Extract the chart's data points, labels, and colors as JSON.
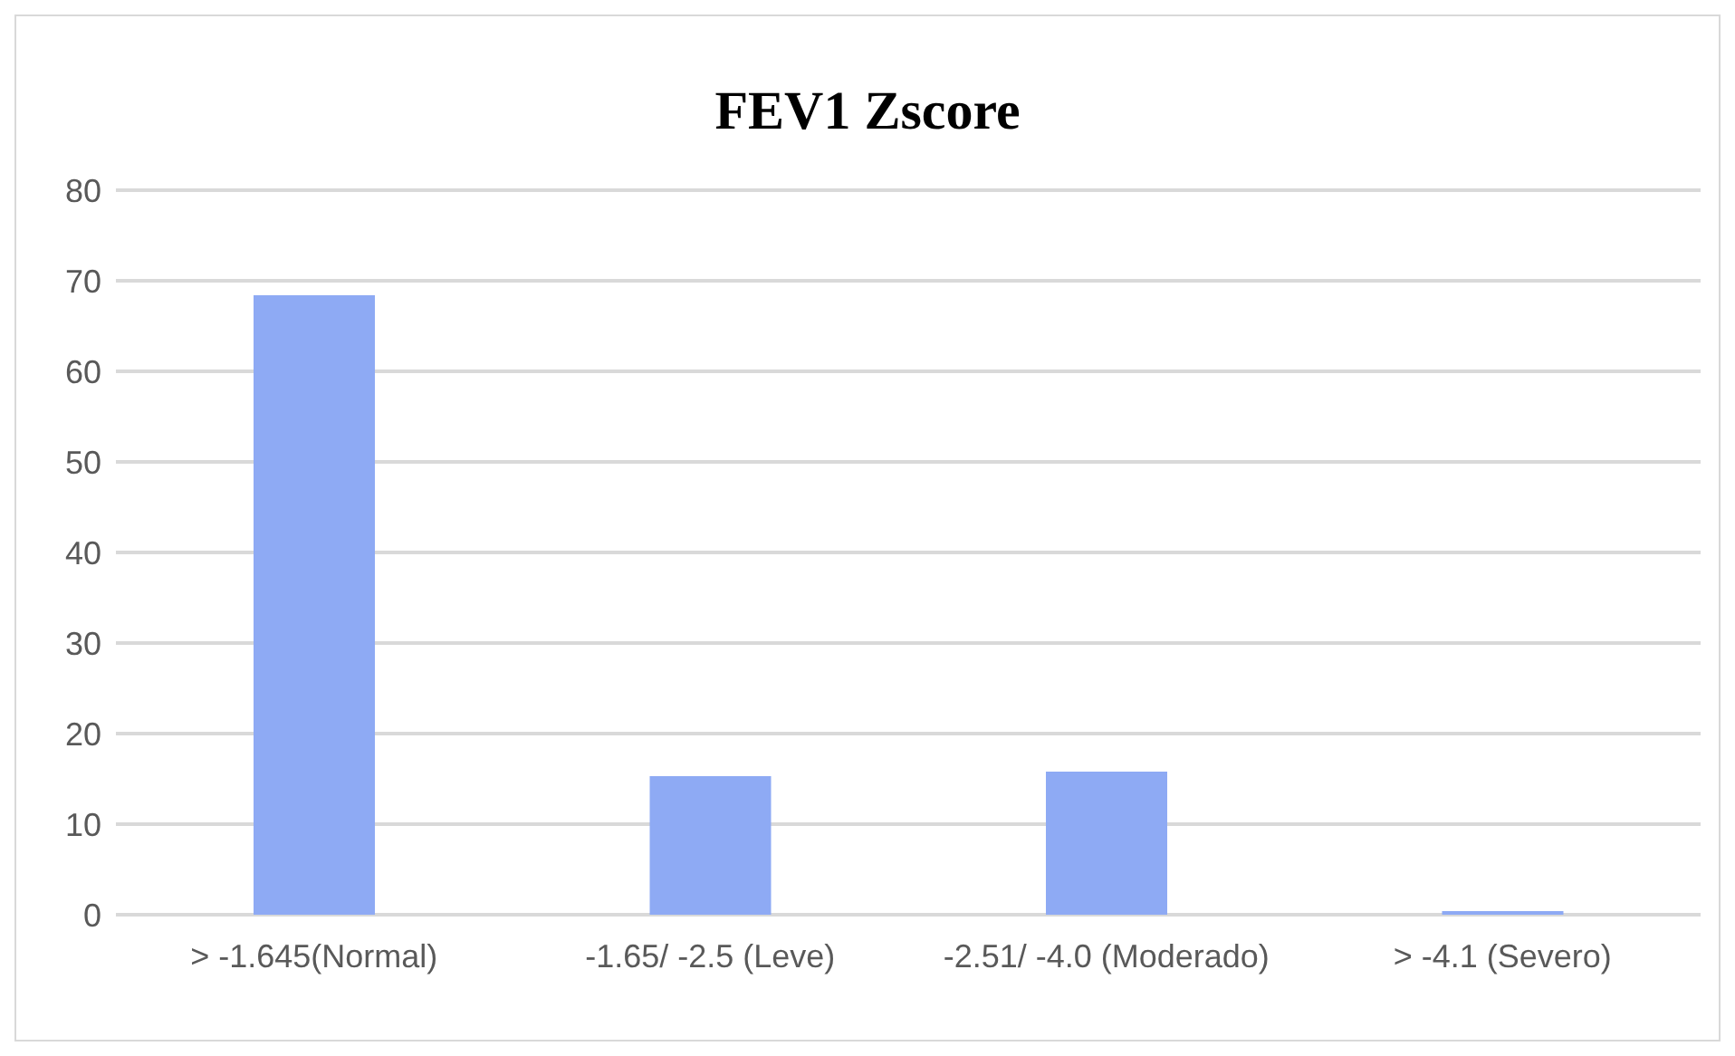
{
  "chart_data": {
    "type": "bar",
    "title": "FEV1 Zscore",
    "categories": [
      "> -1.645(Normal)",
      "-1.65/ -2.5 (Leve)",
      "-2.51/ -4.0 (Moderado)",
      "> -4.1 (Severo)"
    ],
    "values": [
      68.4,
      15.3,
      15.8,
      0.4
    ],
    "color": "#8eaaf4",
    "ylim": [
      0,
      80
    ],
    "yticks": [
      0,
      10,
      20,
      30,
      40,
      50,
      60,
      70,
      80
    ],
    "grid": "y",
    "legend": false
  }
}
